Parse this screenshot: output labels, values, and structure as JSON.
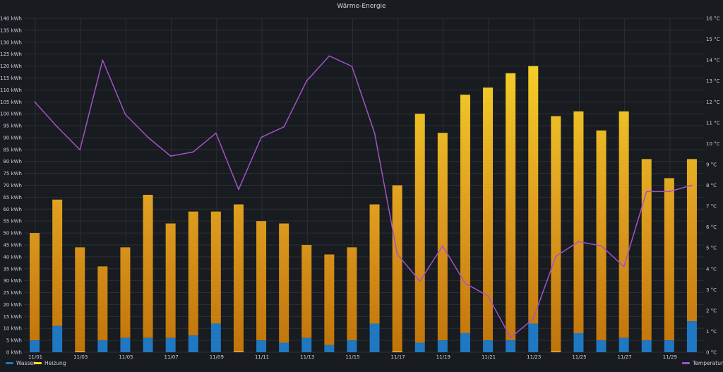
{
  "panel": {
    "title": "Wärme-Energie"
  },
  "colors": {
    "wasser": "#1f78c1",
    "heizung_top": "#fade2a",
    "heizung_mid": "#e0a020",
    "heizung_bottom": "#c0730b",
    "temperatur": "#a352cc",
    "grid": "#2c2f35"
  },
  "legend": {
    "wasser": "Wasser",
    "heizung": "Heizung",
    "temperatur": "Temperatur"
  },
  "chart_data": {
    "type": "bar",
    "categories": [
      "11/01",
      "11/02",
      "11/03",
      "11/04",
      "11/05",
      "11/06",
      "11/07",
      "11/08",
      "11/09",
      "11/10",
      "11/11",
      "11/12",
      "11/13",
      "11/14",
      "11/15",
      "11/16",
      "11/17",
      "11/18",
      "11/19",
      "11/20",
      "11/21",
      "11/22",
      "11/23",
      "11/24",
      "11/25",
      "11/26",
      "11/27",
      "11/28",
      "11/29",
      "11/30"
    ],
    "x_tick_labels": [
      "11/01",
      "11/03",
      "11/05",
      "11/07",
      "11/09",
      "11/11",
      "11/13",
      "11/15",
      "11/17",
      "11/19",
      "11/21",
      "11/23",
      "11/25",
      "11/27",
      "11/29"
    ],
    "y_left": {
      "ticks": [
        "0 kWh",
        "5 kWh",
        "10 kWh",
        "15 kWh",
        "20 kWh",
        "25 kWh",
        "30 kWh",
        "35 kWh",
        "40 kWh",
        "45 kWh",
        "50 kWh",
        "55 kWh",
        "60 kWh",
        "65 kWh",
        "70 kWh",
        "75 kWh",
        "80 kWh",
        "85 kWh",
        "90 kWh",
        "95 kWh",
        "100 kWh",
        "105 kWh",
        "110 kWh",
        "115 kWh",
        "120 kWh",
        "125 kWh",
        "130 kWh",
        "135 kWh",
        "140 kWh"
      ],
      "ylim": [
        0,
        140
      ]
    },
    "y_right": {
      "ticks": [
        "0 °C",
        "1 °C",
        "2 °C",
        "3 °C",
        "4 °C",
        "5 °C",
        "6 °C",
        "7 °C",
        "8 °C",
        "9 °C",
        "10 °C",
        "11 °C",
        "12 °C",
        "13 °C",
        "14 °C",
        "15 °C",
        "16 °C"
      ],
      "ylim": [
        0,
        16
      ]
    },
    "series": [
      {
        "name": "Wasser",
        "values": [
          5,
          11,
          0,
          5,
          6,
          6,
          6,
          7,
          12,
          0,
          5,
          4,
          6,
          3,
          5,
          12,
          0,
          4,
          5,
          8,
          5,
          5,
          12,
          0,
          8,
          5,
          6,
          5,
          5,
          13
        ]
      },
      {
        "name": "Heizung",
        "values": [
          50,
          64,
          44,
          36,
          44,
          66,
          54,
          59,
          59,
          62,
          55,
          54,
          45,
          41,
          44,
          62,
          70,
          100,
          92,
          108,
          111,
          117,
          120,
          99,
          101,
          93,
          101,
          81,
          73,
          81
        ]
      },
      {
        "name": "Temperatur",
        "values": [
          12.0,
          10.8,
          9.7,
          14.0,
          11.4,
          10.3,
          9.4,
          9.6,
          10.5,
          7.8,
          10.3,
          10.8,
          13.0,
          14.2,
          13.7,
          10.5,
          4.7,
          3.4,
          5.1,
          3.3,
          2.7,
          0.7,
          1.6,
          4.6,
          5.3,
          5.1,
          4.1,
          7.7,
          7.7,
          8.0
        ]
      }
    ]
  }
}
